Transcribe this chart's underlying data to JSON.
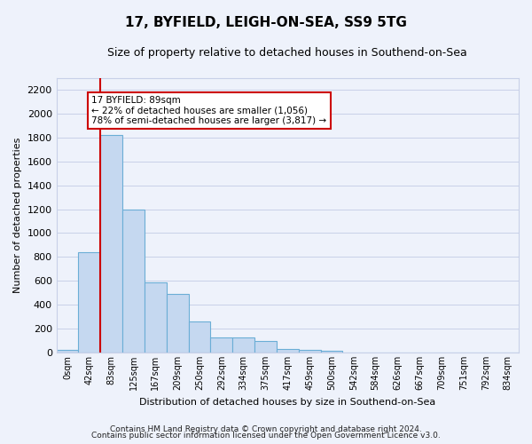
{
  "title": "17, BYFIELD, LEIGH-ON-SEA, SS9 5TG",
  "subtitle": "Size of property relative to detached houses in Southend-on-Sea",
  "xlabel": "Distribution of detached houses by size in Southend-on-Sea",
  "ylabel": "Number of detached properties",
  "footnote1": "Contains HM Land Registry data © Crown copyright and database right 2024.",
  "footnote2": "Contains public sector information licensed under the Open Government Licence v3.0.",
  "bar_labels": [
    "0sqm",
    "42sqm",
    "83sqm",
    "125sqm",
    "167sqm",
    "209sqm",
    "250sqm",
    "292sqm",
    "334sqm",
    "375sqm",
    "417sqm",
    "459sqm",
    "500sqm",
    "542sqm",
    "584sqm",
    "626sqm",
    "667sqm",
    "709sqm",
    "751sqm",
    "792sqm",
    "834sqm"
  ],
  "bar_values": [
    20,
    840,
    1820,
    1200,
    590,
    490,
    260,
    130,
    130,
    100,
    30,
    20,
    15,
    0,
    0,
    0,
    0,
    0,
    0,
    0,
    0
  ],
  "bar_color": "#c5d8f0",
  "bar_edge_color": "#6baed6",
  "ylim": [
    0,
    2300
  ],
  "yticks": [
    0,
    200,
    400,
    600,
    800,
    1000,
    1200,
    1400,
    1600,
    1800,
    2000,
    2200
  ],
  "annotation_title": "17 BYFIELD: 89sqm",
  "annotation_line1": "← 22% of detached houses are smaller (1,056)",
  "annotation_line2": "78% of semi-detached houses are larger (3,817) →",
  "annotation_box_color": "#ffffff",
  "annotation_box_edge": "#cc0000",
  "red_line_color": "#cc0000",
  "red_line_bar_index": 2,
  "background_color": "#eef2fb",
  "grid_color": "#c8d0e8",
  "title_fontsize": 11,
  "subtitle_fontsize": 9,
  "ylabel_fontsize": 8,
  "xlabel_fontsize": 8,
  "tick_fontsize": 8,
  "xtick_fontsize": 7,
  "annotation_fontsize": 7.5,
  "footnote_fontsize": 6.5
}
